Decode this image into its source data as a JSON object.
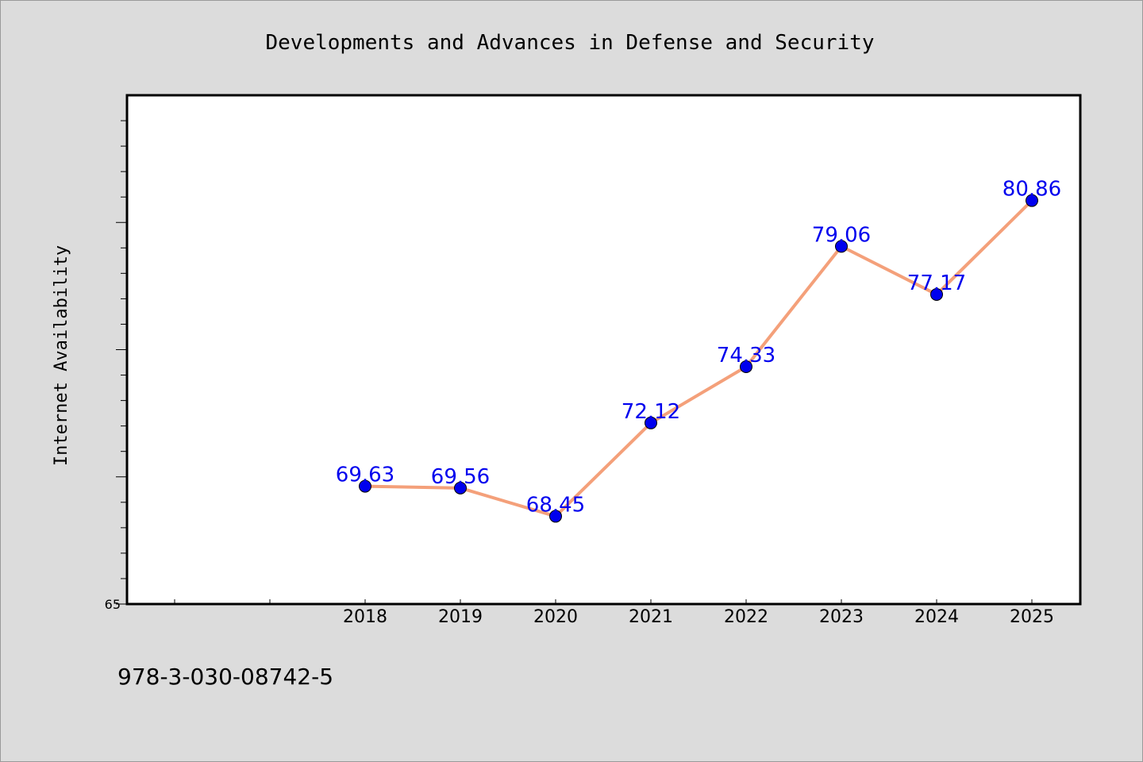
{
  "colors": {
    "background": "#dcdcdc",
    "plot_background": "#ffffff",
    "line": "#f4a07a",
    "marker": "#0000ee",
    "data_label": "#0000ee"
  },
  "footer": {
    "isbn": "978-3-030-08742-5"
  },
  "chart_data": {
    "type": "line",
    "title": "Developments and Advances in Defense and Security",
    "xlabel": "",
    "ylabel": "Internet Availability",
    "categories": [
      "2018",
      "2019",
      "2020",
      "2021",
      "2022",
      "2023",
      "2024",
      "2025"
    ],
    "series": [
      {
        "values": [
          69.63,
          69.56,
          68.45,
          72.12,
          74.33,
          79.06,
          77.17,
          80.86
        ]
      }
    ],
    "data_labels": [
      "69.63",
      "69.56",
      "68.45",
      "72.12",
      "74.33",
      "79.06",
      "77.17",
      "80.86"
    ],
    "ytick_labels": [
      "65"
    ],
    "ylim": [
      65,
      85
    ],
    "grid": false,
    "legend": "none"
  }
}
